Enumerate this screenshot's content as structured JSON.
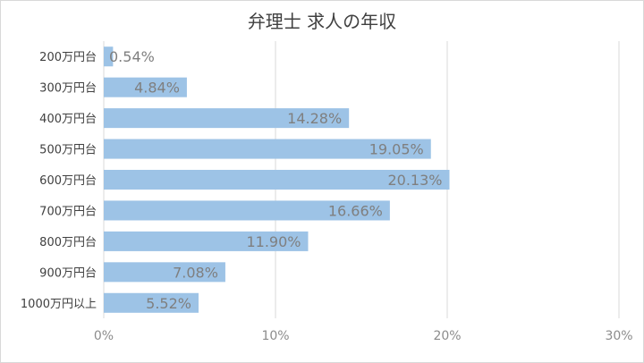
{
  "chart_data": {
    "type": "bar",
    "orientation": "horizontal",
    "title": "弁理士 求人の年収",
    "categories": [
      "200万円台",
      "300万円台",
      "400万円台",
      "500万円台",
      "600万円台",
      "700万円台",
      "800万円台",
      "900万円台",
      "1000万円以上"
    ],
    "values": [
      0.54,
      4.84,
      14.28,
      19.05,
      20.13,
      16.66,
      11.9,
      7.08,
      5.52
    ],
    "data_labels": [
      "0.54%",
      "4.84%",
      "14.28%",
      "19.05%",
      "20.13%",
      "16.66%",
      "11.90%",
      "7.08%",
      "5.52%"
    ],
    "xlim": [
      0,
      30
    ],
    "xticks": [
      0,
      10,
      20,
      30
    ],
    "xtick_labels": [
      "0%",
      "10%",
      "20%",
      "30%"
    ],
    "xlabel": "",
    "ylabel": "",
    "grid": "vertical",
    "legend": "none",
    "colors": {
      "bar": "#9dc3e6",
      "grid": "#d9d9d9",
      "title": "#404040",
      "tick_text": "#8c8c8c",
      "data_label_text": "#7f7f7f"
    }
  }
}
